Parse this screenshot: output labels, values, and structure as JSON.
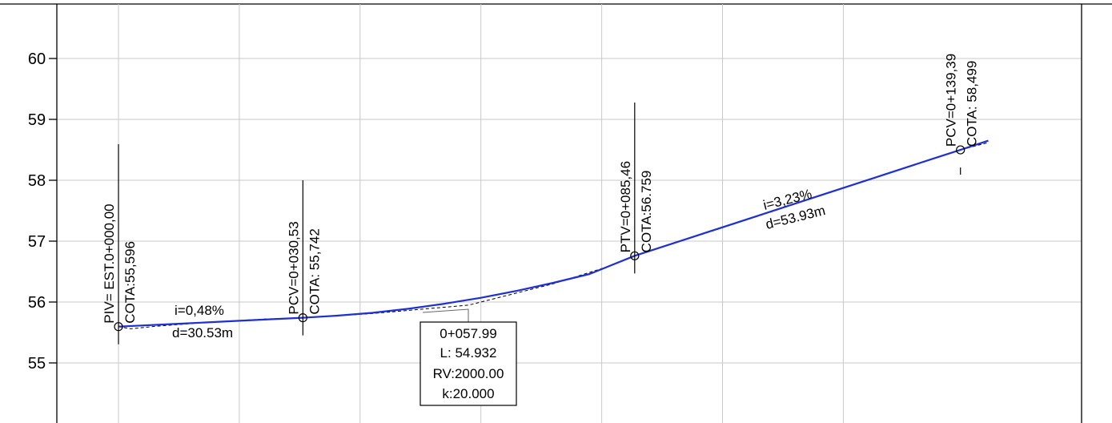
{
  "chart_data": {
    "type": "line",
    "title": "",
    "xlabel": "",
    "ylabel": "",
    "ylim": [
      54.0,
      60.9
    ],
    "xlim": [
      -24.4,
      144.0
    ],
    "yticks": [
      55,
      56,
      57,
      58,
      59,
      60
    ],
    "ytick_labels": [
      "55",
      "56",
      "57",
      "58",
      "59",
      "60"
    ],
    "xgrid": [
      0,
      20,
      40,
      60,
      80,
      100,
      120
    ],
    "grid": true,
    "colors": {
      "profile": "#1f2fd6",
      "terrain": "#000000",
      "grid": "#c8c8c8"
    },
    "series": [
      {
        "x": [
          0,
          10,
          20,
          30.53,
          36,
          42,
          48,
          54,
          60,
          66,
          72,
          78,
          85.46,
          95,
          105,
          115,
          125,
          135,
          139.39,
          144
        ],
        "y": [
          55.596,
          55.644,
          55.692,
          55.742,
          55.775,
          55.823,
          55.889,
          55.973,
          56.07,
          56.185,
          56.316,
          56.46,
          56.759,
          57.067,
          57.39,
          57.713,
          58.036,
          58.359,
          58.499,
          58.65
        ]
      },
      {
        "x": [
          0,
          2,
          6,
          14,
          24,
          30.53,
          42,
          58,
          72,
          81,
          85.46,
          100,
          120,
          139.39,
          144
        ],
        "y": [
          55.596,
          55.56,
          55.6,
          55.66,
          55.72,
          55.742,
          55.81,
          55.95,
          56.3,
          56.58,
          56.759,
          57.22,
          57.87,
          58.499,
          58.62
        ]
      }
    ],
    "points": [
      {
        "x": 0,
        "y": 55.596,
        "label1": "PIV= EST.0+000,00",
        "label2": "COTA:55,596"
      },
      {
        "x": 30.53,
        "y": 55.742,
        "label1": "PCV=0+030,53",
        "label2": "COTA: 55,742"
      },
      {
        "x": 85.46,
        "y": 56.759,
        "label1": "PTV=0+085,46",
        "label2": "COTA:56.759"
      },
      {
        "x": 139.39,
        "y": 58.499,
        "label1": "PCV=0+139,39",
        "label2": "COTA: 58,499"
      }
    ],
    "annotations": {
      "slope1": {
        "grade": "i=0,48%",
        "dist": "d=30.53m"
      },
      "slope2": {
        "grade": "i=3,23%",
        "dist": "d=53.93m"
      },
      "curve_box": [
        "0+057.99",
        "L: 54.932",
        "RV:2000.00",
        "k:20.000"
      ]
    }
  }
}
